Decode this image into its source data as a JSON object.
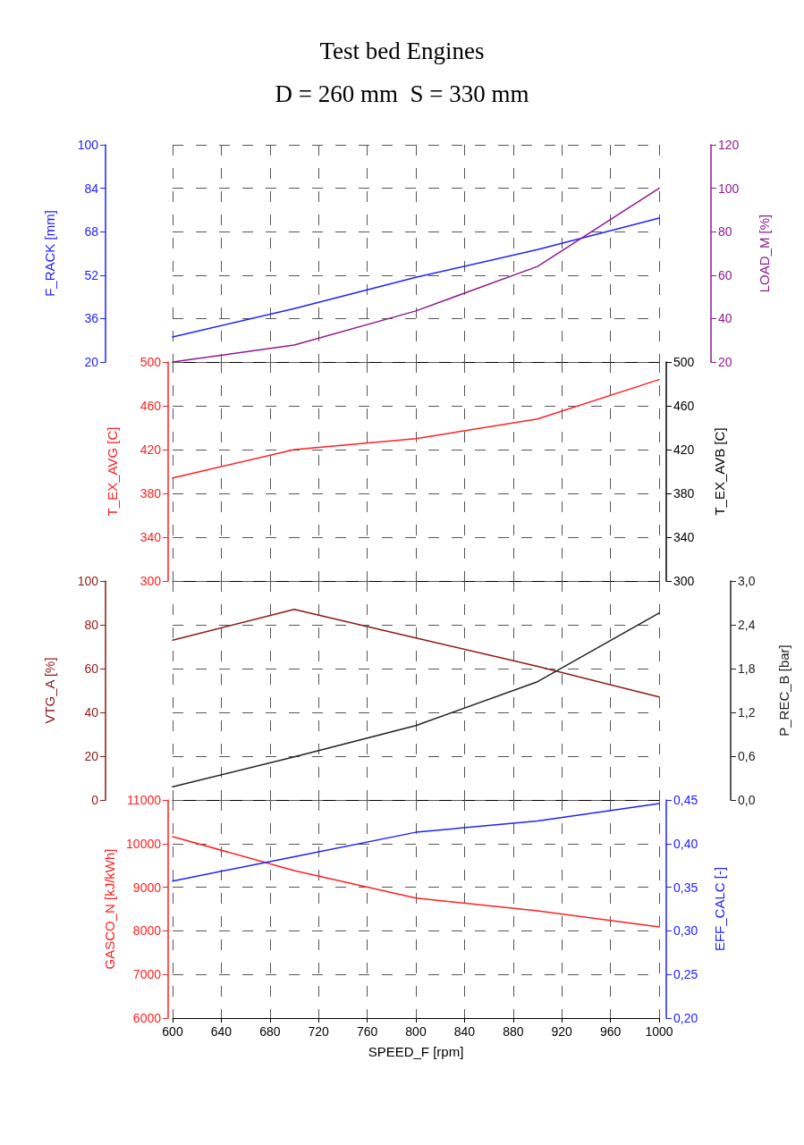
{
  "chart_data": [
    {
      "type": "line",
      "title": "Test bed Engines",
      "subtitle": "D = 260 mm  S = 330 mm",
      "xlim": [
        600,
        1000
      ],
      "xticks": [
        600,
        640,
        680,
        720,
        760,
        800,
        840,
        880,
        920,
        960,
        1000
      ],
      "tick_labels": "y",
      "ylabel": "F_RACK [mm]",
      "ylim": [
        20,
        100
      ],
      "yticks": [
        20,
        36,
        52,
        68,
        84,
        100
      ],
      "y2label": "LOAD_M [%]",
      "y2lim": [
        20,
        120
      ],
      "y2ticks": [
        20,
        40,
        60,
        80,
        100,
        120
      ],
      "grid": true,
      "marker": "none",
      "x": [
        600,
        700,
        800,
        900,
        1000
      ],
      "series": [
        {
          "color": "#2020ff",
          "values": [
            29.2,
            39.7,
            51.2,
            61.4,
            73
          ]
        },
        {
          "color": "#8e1a8e",
          "axis": "y2",
          "values": [
            20,
            27.8,
            43.5,
            64,
            100
          ]
        }
      ]
    },
    {
      "type": "line",
      "xlim": [
        600,
        1000
      ],
      "xticks": [
        600,
        640,
        680,
        720,
        760,
        800,
        840,
        880,
        920,
        960,
        1000
      ],
      "tick_labels": "y",
      "ylabel": "T_EX_AVG [C]",
      "ylim": [
        300,
        500
      ],
      "yticks": [
        300,
        340,
        380,
        420,
        460,
        500
      ],
      "y2label": "T_EX_AVB [C]",
      "y2lim": [
        300,
        500
      ],
      "y2ticks": [
        300,
        340,
        380,
        420,
        460,
        500
      ],
      "grid": true,
      "marker": "none",
      "x": [
        600,
        700,
        800,
        900,
        1000
      ],
      "series": [
        {
          "color": "#ff2020",
          "values": [
            394,
            420,
            430,
            448,
            484
          ]
        }
      ]
    },
    {
      "type": "line",
      "xlim": [
        600,
        1000
      ],
      "xticks": [
        600,
        640,
        680,
        720,
        760,
        800,
        840,
        880,
        920,
        960,
        1000
      ],
      "tick_labels": "y",
      "ylabel": "VTG_A [%]",
      "ylim": [
        0,
        100
      ],
      "yticks": [
        0,
        20,
        40,
        60,
        80,
        100
      ],
      "y2label": "P_REC_B [bar]",
      "y2lim": [
        0,
        3
      ],
      "y2ticks": [
        {
          "value": 0,
          "label": "0,0"
        },
        {
          "value": 0.6,
          "label": "0,6"
        },
        {
          "value": 1.2,
          "label": "1,2"
        },
        {
          "value": 1.8,
          "label": "1,8"
        },
        {
          "value": 2.4,
          "label": "2,4"
        },
        {
          "value": 3,
          "label": "3,0"
        }
      ],
      "grid": true,
      "marker": "none",
      "x": [
        600,
        700,
        800,
        900,
        1000
      ],
      "series": [
        {
          "color": "#8b1a1a",
          "values": [
            73,
            87,
            74,
            61,
            47
          ]
        },
        {
          "color": "#222222",
          "axis": "y2",
          "values": [
            0.18,
            0.59,
            1.02,
            1.62,
            2.56
          ]
        }
      ]
    },
    {
      "type": "line",
      "xlabel": "SPEED_F [rpm]",
      "xlim": [
        600,
        1000
      ],
      "xticks": [
        600,
        640,
        680,
        720,
        760,
        800,
        840,
        880,
        920,
        960,
        1000
      ],
      "ylabel": "GASCO_N [kJ/kWh]",
      "ylim": [
        6000,
        11000
      ],
      "yticks": [
        6000,
        7000,
        8000,
        9000,
        10000,
        11000
      ],
      "y2label": "EFF_CALC [-]",
      "y2lim": [
        0.2,
        0.45
      ],
      "y2ticks": [
        {
          "value": 0.2,
          "label": "0,20"
        },
        {
          "value": 0.25,
          "label": "0,25"
        },
        {
          "value": 0.3,
          "label": "0,30"
        },
        {
          "value": 0.35,
          "label": "0,35"
        },
        {
          "value": 0.4,
          "label": "0,40"
        },
        {
          "value": 0.45,
          "label": "0,45"
        }
      ],
      "grid": true,
      "marker": "none",
      "x": [
        600,
        700,
        800,
        900,
        1000
      ],
      "series": [
        {
          "color": "#ff2020",
          "values": [
            10160,
            9380,
            8750,
            8460,
            8090
          ]
        },
        {
          "color": "#2020ff",
          "axis": "y2",
          "values": [
            0.357,
            0.385,
            0.413,
            0.426,
            0.446
          ]
        }
      ]
    }
  ]
}
